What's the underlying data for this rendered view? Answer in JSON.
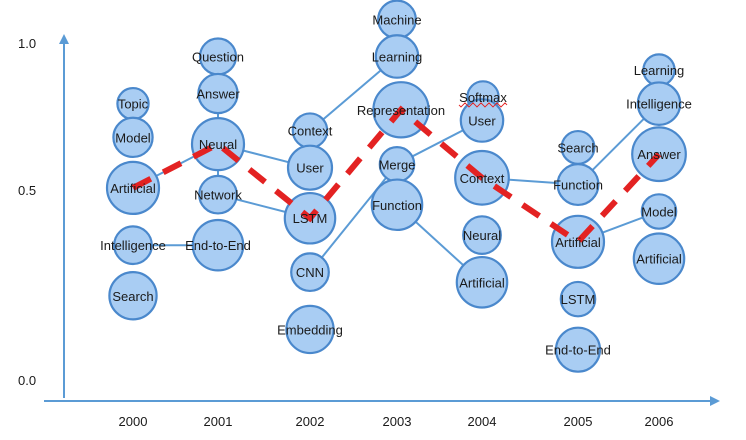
{
  "chart_data": {
    "type": "scatter",
    "title": "",
    "xlabel": "",
    "ylabel": "",
    "x_categories": [
      "2000",
      "2001",
      "2002",
      "2003",
      "2004",
      "2005",
      "2006"
    ],
    "y_ticks": [
      "1.0",
      "0.5",
      "0.0"
    ],
    "ylim": [
      0.0,
      1.0
    ],
    "colors": {
      "bubble_fill": "#a9cdf3",
      "bubble_stroke": "#4a88cc",
      "axis": "#5b9bd5",
      "links": "#5b9bd5",
      "trend": "#e32222"
    },
    "points": [
      {
        "id": "p0",
        "year": "2000",
        "label": "Topic",
        "y": 0.82,
        "size": 0.35
      },
      {
        "id": "p1",
        "year": "2000",
        "label": "Model",
        "y": 0.72,
        "size": 0.6
      },
      {
        "id": "p2",
        "year": "2000",
        "label": "Artificial",
        "y": 0.57,
        "size": 1.0
      },
      {
        "id": "p3",
        "year": "2000",
        "label": "Intelligence",
        "y": 0.4,
        "size": 0.55
      },
      {
        "id": "p4",
        "year": "2000",
        "label": "Search",
        "y": 0.25,
        "size": 0.85
      },
      {
        "id": "p5",
        "year": "2001",
        "label": "Question",
        "y": 0.96,
        "size": 0.5
      },
      {
        "id": "p6",
        "year": "2001",
        "label": "Answer",
        "y": 0.85,
        "size": 0.6
      },
      {
        "id": "p7",
        "year": "2001",
        "label": "Neural",
        "y": 0.7,
        "size": 1.0
      },
      {
        "id": "p8",
        "year": "2001",
        "label": "Network",
        "y": 0.55,
        "size": 0.55
      },
      {
        "id": "p9",
        "year": "2001",
        "label": "End-to-End",
        "y": 0.4,
        "size": 0.95
      },
      {
        "id": "p10",
        "year": "2002",
        "label": "Context",
        "y": 0.74,
        "size": 0.45
      },
      {
        "id": "p11",
        "year": "2002",
        "label": "User",
        "y": 0.63,
        "size": 0.75
      },
      {
        "id": "p12",
        "year": "2002",
        "label": "LSTM",
        "y": 0.48,
        "size": 0.95
      },
      {
        "id": "p13",
        "year": "2002",
        "label": "CNN",
        "y": 0.32,
        "size": 0.55
      },
      {
        "id": "p14",
        "year": "2002",
        "label": "Embedding",
        "y": 0.15,
        "size": 0.85
      },
      {
        "id": "p15",
        "year": "2003",
        "label": "Machine",
        "y": 1.07,
        "size": 0.55
      },
      {
        "id": "p16",
        "year": "2003",
        "label": "Learning",
        "y": 0.96,
        "size": 0.7
      },
      {
        "id": "p17",
        "year": "2003",
        "label": "Representation",
        "y": 0.79,
        "size": 1.1
      },
      {
        "id": "p18",
        "year": "2003",
        "label": "Merge",
        "y": 0.64,
        "size": 0.45
      },
      {
        "id": "p19",
        "year": "2003",
        "label": "Function",
        "y": 0.52,
        "size": 0.95
      },
      {
        "id": "p20",
        "year": "2004",
        "label": "Softmax",
        "y": 0.84,
        "size": 0.35
      },
      {
        "id": "p21",
        "year": "2004",
        "label": "User",
        "y": 0.77,
        "size": 0.7
      },
      {
        "id": "p22",
        "year": "2004",
        "label": "Context",
        "y": 0.6,
        "size": 1.05
      },
      {
        "id": "p23",
        "year": "2004",
        "label": "Neural",
        "y": 0.43,
        "size": 0.55
      },
      {
        "id": "p24",
        "year": "2004",
        "label": "Artificial",
        "y": 0.29,
        "size": 0.95
      },
      {
        "id": "p25",
        "year": "2005",
        "label": "Search",
        "y": 0.69,
        "size": 0.4
      },
      {
        "id": "p26",
        "year": "2005",
        "label": "Function",
        "y": 0.58,
        "size": 0.65
      },
      {
        "id": "p27",
        "year": "2005",
        "label": "Artificial",
        "y": 0.41,
        "size": 1.0
      },
      {
        "id": "p28",
        "year": "2005",
        "label": "LSTM",
        "y": 0.24,
        "size": 0.45
      },
      {
        "id": "p29",
        "year": "2005",
        "label": "End-to-End",
        "y": 0.09,
        "size": 0.75
      },
      {
        "id": "p30",
        "year": "2006",
        "label": "Learning",
        "y": 0.92,
        "size": 0.35
      },
      {
        "id": "p31",
        "year": "2006",
        "label": "Intelligence",
        "y": 0.82,
        "size": 0.7
      },
      {
        "id": "p32",
        "year": "2006",
        "label": "Answer",
        "y": 0.67,
        "size": 1.05
      },
      {
        "id": "p33",
        "year": "2006",
        "label": "Model",
        "y": 0.5,
        "size": 0.45
      },
      {
        "id": "p34",
        "year": "2006",
        "label": "Artificial",
        "y": 0.36,
        "size": 0.95
      }
    ],
    "links": [
      [
        "p2",
        "p7"
      ],
      [
        "p3",
        "p9"
      ],
      [
        "p7",
        "p6"
      ],
      [
        "p7",
        "p8"
      ],
      [
        "p8",
        "p12"
      ],
      [
        "p11",
        "p10"
      ],
      [
        "p10",
        "p16"
      ],
      [
        "p11",
        "p7"
      ],
      [
        "p13",
        "p18"
      ],
      [
        "p18",
        "p21"
      ],
      [
        "p19",
        "p24"
      ],
      [
        "p22",
        "p26"
      ],
      [
        "p26",
        "p31"
      ],
      [
        "p27",
        "p33"
      ]
    ],
    "trend": [
      "p2",
      "p7",
      "p12",
      "p17",
      "p22",
      "p27",
      "p32"
    ]
  }
}
